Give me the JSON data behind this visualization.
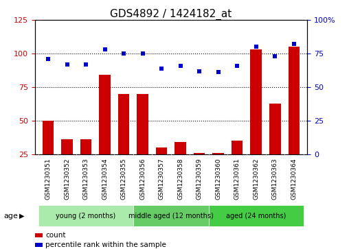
{
  "title": "GDS4892 / 1424182_at",
  "samples": [
    "GSM1230351",
    "GSM1230352",
    "GSM1230353",
    "GSM1230354",
    "GSM1230355",
    "GSM1230356",
    "GSM1230357",
    "GSM1230358",
    "GSM1230359",
    "GSM1230360",
    "GSM1230361",
    "GSM1230362",
    "GSM1230363",
    "GSM1230364"
  ],
  "counts": [
    50,
    36,
    36,
    84,
    70,
    70,
    30,
    34,
    26,
    26,
    35,
    103,
    63,
    105
  ],
  "percentile_ranks": [
    71,
    67,
    67,
    78,
    75,
    75,
    64,
    66,
    62,
    61,
    66,
    80,
    73,
    82
  ],
  "groups": [
    {
      "label": "young (2 months)",
      "start": 0,
      "end": 5,
      "color": "#AAEAAA"
    },
    {
      "label": "middle aged (12 months)",
      "start": 5,
      "end": 9,
      "color": "#66CC66"
    },
    {
      "label": "aged (24 months)",
      "start": 9,
      "end": 14,
      "color": "#44CC44"
    }
  ],
  "ylim_left": [
    25,
    125
  ],
  "ylim_right": [
    0,
    100
  ],
  "yticks_left": [
    25,
    50,
    75,
    100,
    125
  ],
  "yticks_right": [
    0,
    25,
    50,
    75,
    100
  ],
  "bar_color": "#CC0000",
  "dot_color": "#0000CC",
  "sample_bg_color": "#C8C8C8",
  "title_fontsize": 11,
  "left_tick_color": "#CC0000",
  "right_tick_color": "#0000CC",
  "hlines": [
    50,
    75,
    100
  ],
  "age_label": "age",
  "legend_items": [
    {
      "color": "#CC0000",
      "label": "count"
    },
    {
      "color": "#0000CC",
      "label": "percentile rank within the sample"
    }
  ]
}
